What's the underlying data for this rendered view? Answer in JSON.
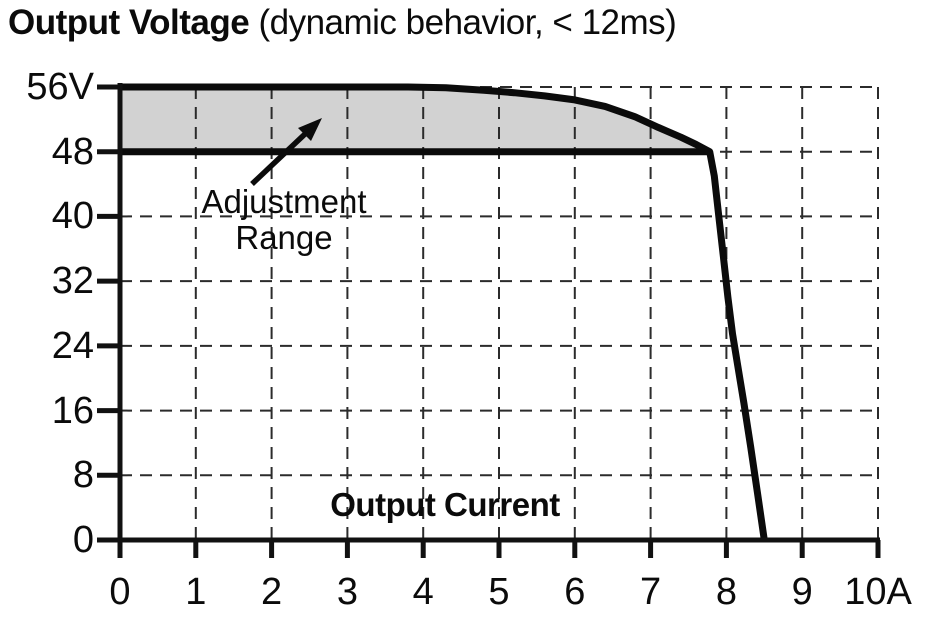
{
  "title": {
    "main": "Output Voltage",
    "suffix": " (dynamic behavior, < 12ms)"
  },
  "chart_data": {
    "type": "line",
    "title": "Output Voltage (dynamic behavior, < 12ms)",
    "xlabel": "Output Current",
    "ylabel": "Output Voltage",
    "x_unit": "A",
    "y_unit": "V",
    "xlim": [
      0,
      10
    ],
    "ylim": [
      0,
      56
    ],
    "grid": "dashed",
    "legend_position": "none",
    "x_ticks": [
      {
        "value": 0,
        "label": "0"
      },
      {
        "value": 1,
        "label": "1"
      },
      {
        "value": 2,
        "label": "2"
      },
      {
        "value": 3,
        "label": "3"
      },
      {
        "value": 4,
        "label": "4"
      },
      {
        "value": 5,
        "label": "5"
      },
      {
        "value": 6,
        "label": "6"
      },
      {
        "value": 7,
        "label": "7"
      },
      {
        "value": 8,
        "label": "8"
      },
      {
        "value": 9,
        "label": "9"
      },
      {
        "value": 10,
        "label": "10A"
      }
    ],
    "y_ticks": [
      {
        "value": 56,
        "label": "56V"
      },
      {
        "value": 48,
        "label": "48"
      },
      {
        "value": 40,
        "label": "40"
      },
      {
        "value": 32,
        "label": "32"
      },
      {
        "value": 24,
        "label": "24"
      },
      {
        "value": 16,
        "label": "16"
      },
      {
        "value": 8,
        "label": "8"
      },
      {
        "value": 0,
        "label": "0"
      }
    ],
    "series": [
      {
        "name": "upper-voltage-limit-curve",
        "points": [
          [
            0,
            56
          ],
          [
            1,
            56
          ],
          [
            2,
            56
          ],
          [
            3,
            56
          ],
          [
            3.8,
            56
          ],
          [
            4.3,
            55.9
          ],
          [
            4.8,
            55.6
          ],
          [
            5.2,
            55.3
          ],
          [
            5.6,
            54.9
          ],
          [
            6.0,
            54.4
          ],
          [
            6.4,
            53.6
          ],
          [
            6.8,
            52.3
          ],
          [
            7.1,
            51.0
          ],
          [
            7.4,
            49.8
          ],
          [
            7.6,
            48.9
          ],
          [
            7.78,
            48
          ],
          [
            7.84,
            45
          ],
          [
            7.9,
            40
          ],
          [
            7.96,
            35
          ],
          [
            8.02,
            30
          ],
          [
            8.08,
            25.5
          ],
          [
            8.15,
            21.5
          ],
          [
            8.23,
            17
          ],
          [
            8.32,
            11.5
          ],
          [
            8.41,
            5.8
          ],
          [
            8.5,
            0
          ]
        ]
      },
      {
        "name": "lower-adjustment-limit-line",
        "points": [
          [
            0,
            48
          ],
          [
            7.78,
            48
          ]
        ]
      }
    ],
    "shaded_region": {
      "description": "area between 48V line and 56V curve from 0A to 7.78A",
      "lower_voltage": 48,
      "upper_voltage": 56
    },
    "annotation": {
      "line1": "Adjustment",
      "line2": "Range"
    },
    "inner_label": "Output Current"
  },
  "colors": {
    "curve": "#0b0b0b",
    "axis": "#111111",
    "grid": "#2b2b2b",
    "fill": "#d2d2d2",
    "text": "#0b0b0b",
    "background": "#ffffff"
  }
}
